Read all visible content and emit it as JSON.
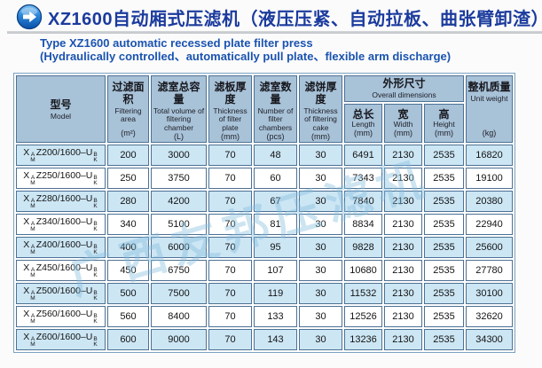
{
  "header": {
    "title_cn": "XZ1600自动厢式压滤机（液压压紧、自动拉板、曲张臂卸渣）",
    "subtitle_en_line1": "Type XZ1600 automatic recessed plate filter press",
    "subtitle_en_line2": "(Hydraulically controlled、automatically pull plate、flexible arm discharge)"
  },
  "colors": {
    "title_blue": "#1b3b9d",
    "subtitle_blue": "#1a53b0",
    "header_bg": "#a8c2d8",
    "row_blue": "#cce6f4",
    "row_white": "#ffffff",
    "grid_border": "#4d7194",
    "icon_blue": "#1976d2",
    "watermark_blue": "#89bede"
  },
  "watermark_text": "广西友邦压滤机",
  "table": {
    "columns": [
      {
        "cn": "型号",
        "en": "Model",
        "unit": ""
      },
      {
        "cn": "过滤面积",
        "en": "Filtering area",
        "unit": "(m²)"
      },
      {
        "cn": "滤室总容量",
        "en": "Total volume of filtering chamber",
        "unit": "(L)"
      },
      {
        "cn": "滤板厚度",
        "en": "Thickness of filter plate",
        "unit": "(mm)"
      },
      {
        "cn": "滤室数量",
        "en": "Number of filter chambers",
        "unit": "(pcs)"
      },
      {
        "cn": "滤饼厚度",
        "en": "Thickness of filtering cake",
        "unit": "(mm)"
      },
      {
        "cn": "整机质量",
        "en": "Unit weight",
        "unit": "(kg)"
      }
    ],
    "dims_group": {
      "cn": "外形尺寸",
      "en": "Overall dimensions",
      "sub": [
        {
          "cn": "总长",
          "en": "Length",
          "unit": "(mm)"
        },
        {
          "cn": "宽",
          "en": "Width",
          "unit": "(mm)"
        },
        {
          "cn": "高",
          "en": "Height",
          "unit": "(mm)"
        }
      ]
    },
    "model_notation": {
      "prefix": "X",
      "sup1": "A",
      "sub1": "M",
      "sup2": "B",
      "sub2": "K"
    },
    "rows": [
      {
        "model_mid": "Z200/1600–U",
        "values": [
          "200",
          "3000",
          "70",
          "48",
          "30",
          "6491",
          "2130",
          "2535",
          "16820"
        ]
      },
      {
        "model_mid": "Z250/1600–U",
        "values": [
          "250",
          "3750",
          "70",
          "60",
          "30",
          "7343",
          "2130",
          "2535",
          "19100"
        ]
      },
      {
        "model_mid": "Z280/1600–U",
        "values": [
          "280",
          "4200",
          "70",
          "67",
          "30",
          "7840",
          "2130",
          "2535",
          "20380"
        ]
      },
      {
        "model_mid": "Z340/1600–U",
        "values": [
          "340",
          "5100",
          "70",
          "81",
          "30",
          "8834",
          "2130",
          "2535",
          "22940"
        ]
      },
      {
        "model_mid": "Z400/1600–U",
        "values": [
          "400",
          "6000",
          "70",
          "95",
          "30",
          "9828",
          "2130",
          "2535",
          "25600"
        ]
      },
      {
        "model_mid": "Z450/1600–U",
        "values": [
          "450",
          "6750",
          "70",
          "107",
          "30",
          "10680",
          "2130",
          "2535",
          "27780"
        ]
      },
      {
        "model_mid": "Z500/1600–U",
        "values": [
          "500",
          "7500",
          "70",
          "119",
          "30",
          "11532",
          "2130",
          "2535",
          "30100"
        ]
      },
      {
        "model_mid": "Z560/1600–U",
        "values": [
          "560",
          "8400",
          "70",
          "133",
          "30",
          "12526",
          "2130",
          "2535",
          "32620"
        ]
      },
      {
        "model_mid": "Z600/1600–U",
        "values": [
          "600",
          "9000",
          "70",
          "143",
          "30",
          "13236",
          "2130",
          "2535",
          "34300"
        ]
      }
    ]
  }
}
